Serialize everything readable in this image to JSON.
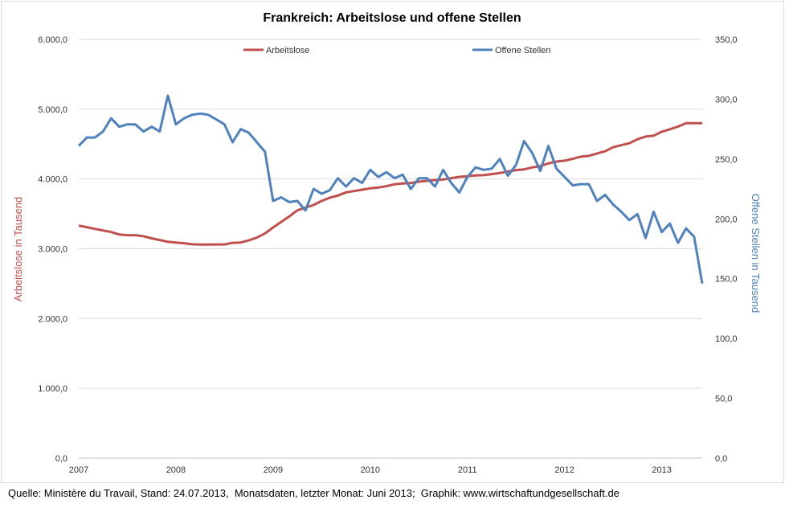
{
  "chart_data": {
    "type": "line",
    "title": "Frankreich: Arbeitslose und offene Stellen",
    "xlabel": "",
    "ylabel": "Arbeitslose in Tausend",
    "y2label": "Offene Stellen in Tausend",
    "x_ticks": [
      "2007",
      "2008",
      "2009",
      "2010",
      "2011",
      "2012",
      "2013"
    ],
    "y_ticks": [
      "0,0",
      "1.000,0",
      "2.000,0",
      "3.000,0",
      "4.000,0",
      "5.000,0",
      "6.000,0"
    ],
    "y2_ticks": [
      "0,0",
      "50,0",
      "100,0",
      "150,0",
      "200,0",
      "250,0",
      "300,0",
      "350,0"
    ],
    "ylim": [
      0,
      6000
    ],
    "y2lim": [
      0,
      350
    ],
    "x_start": "2007-01",
    "x_unit": "month",
    "grid": true,
    "legend_position": "top",
    "series": [
      {
        "name": "Arbeitslose",
        "axis": "left",
        "color": "#c0504d",
        "values": [
          3332,
          3310,
          3285,
          3262,
          3240,
          3205,
          3195,
          3195,
          3180,
          3150,
          3125,
          3100,
          3090,
          3080,
          3065,
          3060,
          3060,
          3062,
          3062,
          3085,
          3090,
          3120,
          3160,
          3220,
          3305,
          3385,
          3463,
          3551,
          3590,
          3628,
          3685,
          3731,
          3762,
          3808,
          3827,
          3847,
          3866,
          3877,
          3897,
          3924,
          3935,
          3943,
          3962,
          3973,
          3985,
          3993,
          4012,
          4031,
          4039,
          4050,
          4055,
          4070,
          4085,
          4108,
          4128,
          4138,
          4165,
          4185,
          4223,
          4250,
          4262,
          4289,
          4320,
          4331,
          4366,
          4397,
          4455,
          4484,
          4512,
          4570,
          4608,
          4620,
          4677,
          4712,
          4750,
          4800,
          4800,
          4800
        ]
      },
      {
        "name": "Offene Stellen",
        "axis": "right",
        "color": "#4f81bd",
        "values": [
          261,
          268,
          268,
          273,
          284,
          277,
          279,
          279,
          273,
          277,
          273,
          303,
          279,
          284,
          287,
          288,
          287,
          283,
          279,
          264,
          275,
          272,
          264,
          256,
          215,
          218,
          214,
          215,
          207,
          225,
          221,
          224,
          234,
          227,
          234,
          230,
          241,
          235,
          239,
          234,
          237,
          225,
          234,
          234,
          227,
          241,
          230,
          222,
          235,
          243,
          241,
          242,
          250,
          236,
          245,
          265,
          255,
          240,
          261,
          242,
          235,
          228,
          229,
          229,
          215,
          220,
          212,
          206,
          199,
          204,
          184,
          206,
          189,
          196,
          180,
          192,
          185,
          146
        ]
      }
    ]
  },
  "footer": "Quelle: Ministère du Travail, Stand: 24.07.2013,  Monatsdaten, letzter Monat: Juni 2013;  Graphik: www.wirtschaftundgesellschaft.de"
}
